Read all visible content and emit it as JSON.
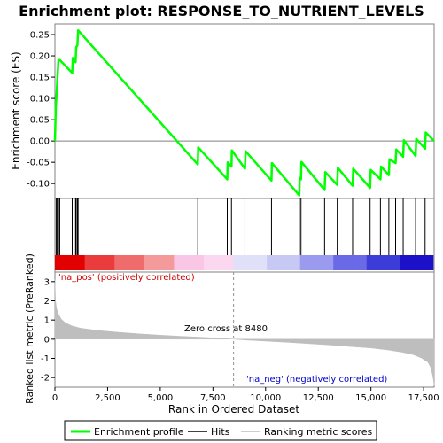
{
  "chart_data": {
    "type": "line",
    "title": "Enrichment plot: RESPONSE_TO_NUTRIENT_LEVELS",
    "xlabel": "Rank in Ordered Dataset",
    "es_panel": {
      "ylabel": "Enrichment score (ES)",
      "ylim": [
        -0.135,
        0.275
      ],
      "yticks": [
        "0.25",
        "0.20",
        "0.15",
        "0.10",
        "0.05",
        "0.00",
        "-0.05",
        "-0.10"
      ],
      "ytick_values": [
        0.25,
        0.2,
        0.15,
        0.1,
        0.05,
        0.0,
        -0.05,
        -0.1
      ],
      "series": [
        {
          "name": "Enrichment profile",
          "color": "#00ff00",
          "x": [
            0,
            40,
            80,
            120,
            170,
            230,
            820,
            850,
            980,
            1010,
            1070,
            1100,
            6780,
            6800,
            8180,
            8200,
            8380,
            8400,
            9020,
            9050,
            10280,
            10300,
            11600,
            11620,
            11680,
            11700,
            12800,
            12830,
            13400,
            13430,
            14130,
            14160,
            14960,
            14990,
            15450,
            15480,
            15850,
            15880,
            16170,
            16200,
            16530,
            16560,
            17120,
            17150,
            17570,
            17600,
            18000
          ],
          "y": [
            0.0,
            0.08,
            0.11,
            0.15,
            0.19,
            0.19,
            0.16,
            0.195,
            0.185,
            0.22,
            0.225,
            0.26,
            -0.055,
            -0.015,
            -0.09,
            -0.05,
            -0.06,
            -0.022,
            -0.065,
            -0.024,
            -0.093,
            -0.052,
            -0.128,
            -0.087,
            -0.09,
            -0.049,
            -0.115,
            -0.073,
            -0.103,
            -0.063,
            -0.105,
            -0.065,
            -0.11,
            -0.068,
            -0.09,
            -0.06,
            -0.08,
            -0.043,
            -0.052,
            -0.02,
            -0.037,
            0.002,
            -0.035,
            0.005,
            -0.018,
            0.02,
            0.0
          ]
        }
      ]
    },
    "hits": [
      60,
      110,
      170,
      230,
      820,
      980,
      1010,
      1070,
      1100,
      6780,
      8180,
      8380,
      9020,
      10280,
      11600,
      11680,
      12800,
      13400,
      14130,
      14960,
      15450,
      15850,
      16170,
      16530,
      17120,
      17570
    ],
    "metric_panel": {
      "ylabel": "Ranked list metric (PreRanked)",
      "ylim": [
        -2.5,
        3.5
      ],
      "yticks": [
        "3",
        "2",
        "1",
        "0",
        "-1",
        "-2"
      ],
      "ytick_values": [
        3,
        2,
        1,
        0,
        -1,
        -2
      ],
      "series": [
        {
          "name": "Ranking metric scores",
          "color": "#bebebe",
          "x": [
            0,
            30,
            80,
            150,
            300,
            500,
            800,
            1200,
            2000,
            3000,
            4000,
            5000,
            6000,
            7000,
            8000,
            8480,
            9000,
            10000,
            11000,
            12000,
            13000,
            14000,
            15000,
            15800,
            16500,
            17000,
            17400,
            17700,
            17850,
            17950,
            18000
          ],
          "y": [
            3.1,
            2.0,
            1.6,
            1.35,
            1.05,
            0.85,
            0.7,
            0.58,
            0.46,
            0.36,
            0.28,
            0.21,
            0.15,
            0.1,
            0.04,
            0.0,
            -0.04,
            -0.1,
            -0.16,
            -0.23,
            -0.3,
            -0.38,
            -0.46,
            -0.56,
            -0.68,
            -0.8,
            -0.98,
            -1.2,
            -1.5,
            -2.0,
            -2.4
          ]
        }
      ],
      "zero_cross_label": "Zero cross at 8480",
      "zero_cross": 8480,
      "pos_label": "'na_pos' (positively correlated)",
      "neg_label": "'na_neg' (negatively correlated)"
    },
    "xlim": [
      0,
      18000
    ],
    "xticks": [
      "0",
      "2,500",
      "5,000",
      "7,500",
      "10,000",
      "12,500",
      "15,000",
      "17,500"
    ],
    "xtick_values": [
      0,
      2500,
      5000,
      7500,
      10000,
      12500,
      15000,
      17500
    ],
    "legend": {
      "placement": "bottom",
      "items": [
        {
          "label": "Enrichment profile",
          "color": "#00ff00"
        },
        {
          "label": "Hits",
          "color": "#000000"
        },
        {
          "label": "Ranking metric scores",
          "color": "#bebebe"
        }
      ]
    },
    "colors": {
      "pos_band": [
        "#e20000",
        "#ea3c3c",
        "#f06b6b",
        "#f59a9a",
        "#fac6e6",
        "#fbd7f0"
      ],
      "neg_band": [
        "#e0e0f8",
        "#c8c8f4",
        "#9a9aee",
        "#6a6ae6",
        "#3c3cd8",
        "#1c10c8"
      ],
      "pos_label_color": "#cc0000",
      "neg_label_color": "#0000cc"
    }
  }
}
